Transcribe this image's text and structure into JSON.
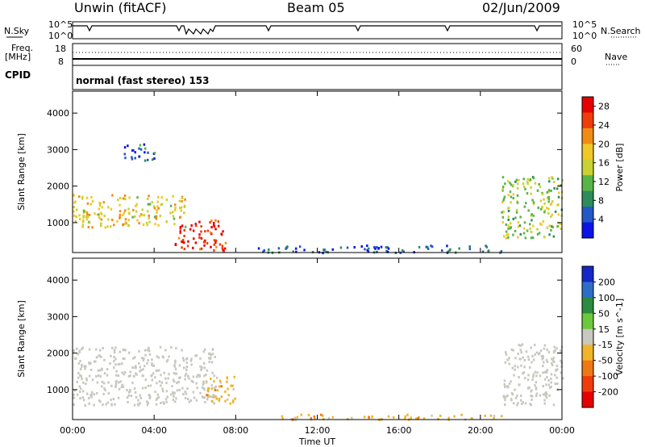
{
  "header": {
    "station": "Unwin (fitACF)",
    "beam": "Beam 05",
    "date": "02/Jun/2009"
  },
  "strip": {
    "nsky_label": "N.Sky",
    "nsky_ticks": [
      "10^5",
      "10^0"
    ],
    "nsearch_label": "N.Search",
    "nsearch_ticks": [
      "10^5",
      "10^0"
    ],
    "freq_label": "Freq.",
    "freq_unit": "[MHz]",
    "freq_ticks": [
      "18",
      "8"
    ],
    "nave_label": "Nave",
    "nave_ticks": [
      "60",
      "0"
    ],
    "cpid_label": "CPID",
    "cpid_value": "normal (fast stereo) 153"
  },
  "chart_data": [
    {
      "type": "heatmap",
      "panel": "power",
      "ylabel": "Slant Range [km]",
      "yticks": [
        1000,
        2000,
        3000,
        4000
      ],
      "ylim": [
        180,
        4600
      ],
      "xticks": [
        "00:00",
        "04:00",
        "08:00",
        "12:00",
        "16:00",
        "20:00",
        "00:00"
      ],
      "xlim_hours": [
        0,
        24
      ],
      "colorbar": {
        "label": "Power [dB]",
        "ticks": [
          4,
          8,
          12,
          16,
          20,
          24,
          28
        ],
        "range": [
          0,
          30
        ],
        "colors": [
          "#0a14e6",
          "#2458c8",
          "#2e8c5a",
          "#58b446",
          "#c8d232",
          "#f0c828",
          "#f08c14",
          "#f03c0a",
          "#e60000"
        ]
      },
      "regions": [
        {
          "t": [
            0.0,
            5.5
          ],
          "r": [
            900,
            1800
          ],
          "level": 18
        },
        {
          "t": [
            5.0,
            7.5
          ],
          "r": [
            250,
            1100
          ],
          "level": 27
        },
        {
          "t": [
            2.5,
            4.0
          ],
          "r": [
            2700,
            3200
          ],
          "level": 6
        },
        {
          "t": [
            21.0,
            24.0
          ],
          "r": [
            600,
            2300
          ],
          "level": 14
        },
        {
          "t": [
            9.0,
            21.0
          ],
          "r": [
            200,
            400
          ],
          "level": 5
        }
      ]
    },
    {
      "type": "heatmap",
      "panel": "velocity",
      "ylabel": "Slant Range [km]",
      "yticks": [
        1000,
        2000,
        3000,
        4000
      ],
      "ylim": [
        180,
        4600
      ],
      "xticks": [
        "00:00",
        "04:00",
        "08:00",
        "12:00",
        "16:00",
        "20:00",
        "00:00"
      ],
      "xlabel": "Time UT",
      "xlim_hours": [
        0,
        24
      ],
      "colorbar": {
        "label": "Velocity [m s^-1]",
        "ticks": [
          200,
          100,
          50,
          15,
          -15,
          -50,
          -100,
          -200
        ],
        "colors": [
          "#1428c8",
          "#2e6ec8",
          "#2a8c3c",
          "#6cc83c",
          "#c8c8c0",
          "#f0b428",
          "#f07814",
          "#f03c0a",
          "#e60000"
        ]
      },
      "regions": [
        {
          "t": [
            0.0,
            7.0
          ],
          "r": [
            600,
            2200
          ],
          "level": 0
        },
        {
          "t": [
            6.5,
            8.0
          ],
          "r": [
            600,
            1400
          ],
          "level": -40
        },
        {
          "t": [
            21.0,
            24.0
          ],
          "r": [
            600,
            2300
          ],
          "level": 0
        },
        {
          "t": [
            10.0,
            21.0
          ],
          "r": [
            200,
            350
          ],
          "level": -30
        }
      ]
    }
  ]
}
